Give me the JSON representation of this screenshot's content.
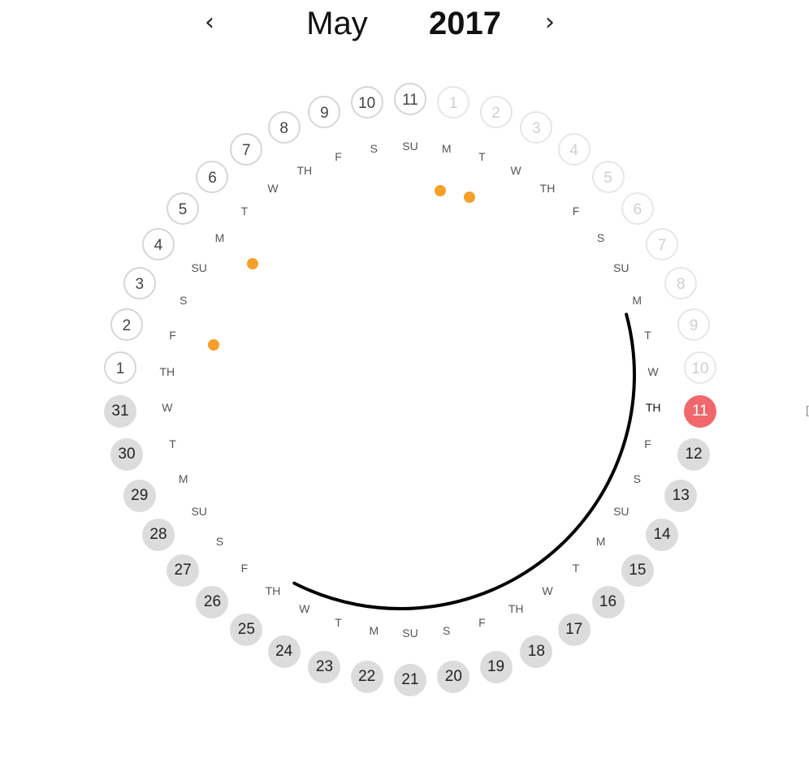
{
  "header": {
    "prev_icon": "chevron-left-icon",
    "prev_glyph": "‹",
    "month": "May",
    "year": "2017",
    "next_icon": "chevron-right-icon",
    "next_glyph": "›"
  },
  "colors": {
    "today": "#f0686c",
    "event_dot": "#f5a02a",
    "upcoming_fill": "#dcdcdc",
    "progress_arc": "#000000"
  },
  "days": [
    {
      "num": "11",
      "wd": "SU",
      "state": "prev-month"
    },
    {
      "num": "1",
      "wd": "M",
      "state": "next-month",
      "event": true
    },
    {
      "num": "2",
      "wd": "T",
      "state": "next-month",
      "event": true
    },
    {
      "num": "3",
      "wd": "W",
      "state": "next-month"
    },
    {
      "num": "4",
      "wd": "TH",
      "state": "next-month"
    },
    {
      "num": "5",
      "wd": "F",
      "state": "next-month"
    },
    {
      "num": "6",
      "wd": "S",
      "state": "next-month"
    },
    {
      "num": "7",
      "wd": "SU",
      "state": "next-month"
    },
    {
      "num": "8",
      "wd": "M",
      "state": "next-month"
    },
    {
      "num": "9",
      "wd": "T",
      "state": "next-month"
    },
    {
      "num": "10",
      "wd": "W",
      "state": "next-month"
    },
    {
      "num": "11",
      "wd": "TH",
      "state": "today"
    },
    {
      "num": "12",
      "wd": "F",
      "state": "upcoming"
    },
    {
      "num": "13",
      "wd": "S",
      "state": "upcoming"
    },
    {
      "num": "14",
      "wd": "SU",
      "state": "upcoming"
    },
    {
      "num": "15",
      "wd": "M",
      "state": "upcoming"
    },
    {
      "num": "16",
      "wd": "T",
      "state": "upcoming"
    },
    {
      "num": "17",
      "wd": "W",
      "state": "upcoming"
    },
    {
      "num": "18",
      "wd": "TH",
      "state": "upcoming"
    },
    {
      "num": "19",
      "wd": "F",
      "state": "upcoming"
    },
    {
      "num": "20",
      "wd": "S",
      "state": "upcoming"
    },
    {
      "num": "21",
      "wd": "SU",
      "state": "upcoming"
    },
    {
      "num": "22",
      "wd": "M",
      "state": "upcoming"
    },
    {
      "num": "23",
      "wd": "T",
      "state": "upcoming"
    },
    {
      "num": "24",
      "wd": "W",
      "state": "upcoming"
    },
    {
      "num": "25",
      "wd": "TH",
      "state": "upcoming"
    },
    {
      "num": "26",
      "wd": "F",
      "state": "upcoming"
    },
    {
      "num": "27",
      "wd": "S",
      "state": "upcoming"
    },
    {
      "num": "28",
      "wd": "SU",
      "state": "upcoming"
    },
    {
      "num": "29",
      "wd": "M",
      "state": "upcoming"
    },
    {
      "num": "30",
      "wd": "T",
      "state": "upcoming"
    },
    {
      "num": "31",
      "wd": "W",
      "state": "upcoming"
    },
    {
      "num": "1",
      "wd": "TH",
      "state": "prev-month"
    },
    {
      "num": "2",
      "wd": "F",
      "state": "prev-month",
      "event": true
    },
    {
      "num": "3",
      "wd": "S",
      "state": "prev-month"
    },
    {
      "num": "4",
      "wd": "SU",
      "state": "prev-month"
    },
    {
      "num": "5",
      "wd": "M",
      "state": "prev-month",
      "event": true
    },
    {
      "num": "6",
      "wd": "T",
      "state": "prev-month"
    },
    {
      "num": "7",
      "wd": "W",
      "state": "prev-month"
    },
    {
      "num": "8",
      "wd": "TH",
      "state": "prev-month"
    },
    {
      "num": "9",
      "wd": "F",
      "state": "prev-month"
    },
    {
      "num": "10",
      "wd": "S",
      "state": "prev-month"
    }
  ]
}
